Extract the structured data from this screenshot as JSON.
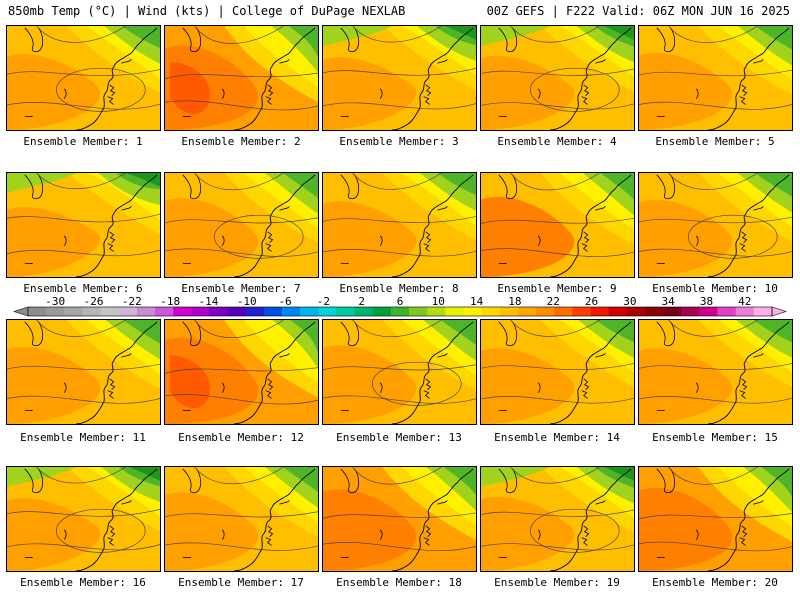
{
  "header": {
    "title_left": "850mb Temp (°C) | Wind (kts) | College of DuPage NEXLAB",
    "title_right": "00Z GEFS | F222 Valid: 06Z MON JUN 16 2025"
  },
  "member_label_prefix": "Ensemble Member: ",
  "members": [
    {
      "id": "1",
      "label": "Ensemble Member: 1",
      "warm": 0.45
    },
    {
      "id": "2",
      "label": "Ensemble Member: 2",
      "warm": 0.75
    },
    {
      "id": "3",
      "label": "Ensemble Member: 3",
      "warm": 0.35
    },
    {
      "id": "4",
      "label": "Ensemble Member: 4",
      "warm": 0.4
    },
    {
      "id": "5",
      "label": "Ensemble Member: 5",
      "warm": 0.5
    },
    {
      "id": "6",
      "label": "Ensemble Member: 6",
      "warm": 0.25
    },
    {
      "id": "7",
      "label": "Ensemble Member: 7",
      "warm": 0.55
    },
    {
      "id": "8",
      "label": "Ensemble Member: 8",
      "warm": 0.45
    },
    {
      "id": "9",
      "label": "Ensemble Member: 9",
      "warm": 0.6
    },
    {
      "id": "10",
      "label": "Ensemble Member: 10",
      "warm": 0.5
    },
    {
      "id": "11",
      "label": "Ensemble Member: 11",
      "warm": 0.5
    },
    {
      "id": "12",
      "label": "Ensemble Member: 12",
      "warm": 0.8
    },
    {
      "id": "13",
      "label": "Ensemble Member: 13",
      "warm": 0.55
    },
    {
      "id": "14",
      "label": "Ensemble Member: 14",
      "warm": 0.45
    },
    {
      "id": "15",
      "label": "Ensemble Member: 15",
      "warm": 0.45
    },
    {
      "id": "16",
      "label": "Ensemble Member: 16",
      "warm": 0.35
    },
    {
      "id": "17",
      "label": "Ensemble Member: 17",
      "warm": 0.55
    },
    {
      "id": "18",
      "label": "Ensemble Member: 18",
      "warm": 0.65
    },
    {
      "id": "19",
      "label": "Ensemble Member: 19",
      "warm": 0.4
    },
    {
      "id": "20",
      "label": "Ensemble Member: 20",
      "warm": 0.7
    }
  ],
  "colorbar": {
    "tick_labels": [
      "-30",
      "-26",
      "-22",
      "-18",
      "-14",
      "-10",
      "-6",
      "-2",
      "2",
      "6",
      "10",
      "14",
      "18",
      "22",
      "26",
      "30",
      "34",
      "38",
      "42"
    ],
    "colors": [
      "#8c8c8c",
      "#9a9a9a",
      "#a6a6a6",
      "#b5b5b5",
      "#c4c4c4",
      "#d0b4d8",
      "#c98bd6",
      "#cc55dd",
      "#d100d1",
      "#b000cc",
      "#7a00c8",
      "#5500bb",
      "#2222d0",
      "#0050e8",
      "#0088ee",
      "#00b4ee",
      "#00d4d4",
      "#00c8a0",
      "#00b46e",
      "#00a03c",
      "#3cb428",
      "#82c81e",
      "#b4dc14",
      "#e6f000",
      "#fff000",
      "#ffd700",
      "#ffbe00",
      "#ffa500",
      "#ff8c00",
      "#ff6e00",
      "#ff4000",
      "#f01a00",
      "#d20000",
      "#aa0000",
      "#8a0000",
      "#780014",
      "#aa0050",
      "#d0008c",
      "#e040c8",
      "#f07cd8",
      "#ffb0e8"
    ],
    "map_colors": {
      "green_dark": "#1e961e",
      "green": "#50b428",
      "lime": "#a0d21e",
      "yellow": "#fff000",
      "gold": "#ffd700",
      "orange_light": "#ffbe00",
      "orange": "#ffa000",
      "orange_dark": "#ff7f00",
      "red_orange": "#ff5a00"
    }
  }
}
